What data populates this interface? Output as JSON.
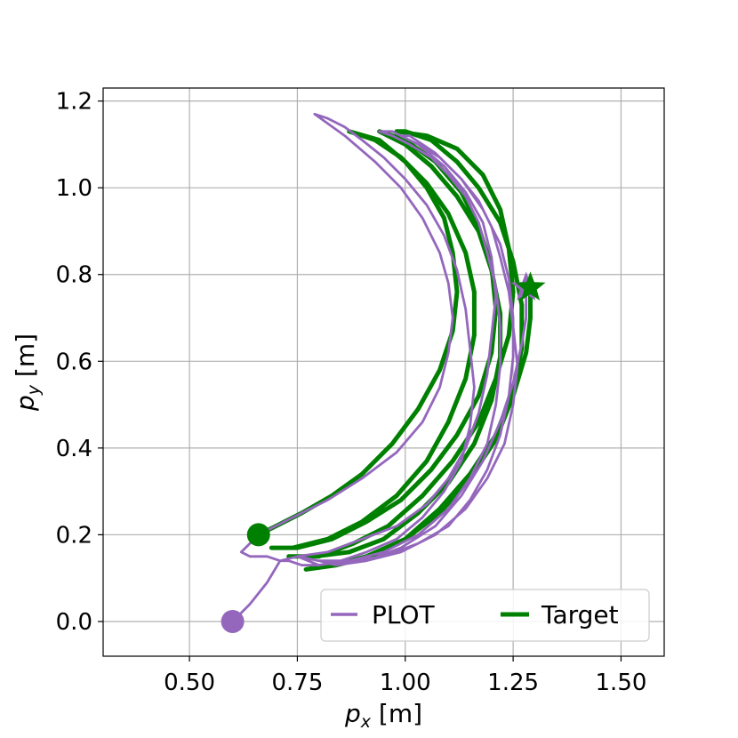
{
  "chart_data": {
    "type": "line",
    "xlabel": "p_x [m]",
    "ylabel": "p_y [m]",
    "xlabel_main": "p",
    "xlabel_sub": "x",
    "xlabel_unit": " [m]",
    "ylabel_main": "p",
    "ylabel_sub": "y",
    "ylabel_unit": " [m]",
    "xlim": [
      0.3,
      1.6
    ],
    "ylim": [
      -0.08,
      1.23
    ],
    "xticks": [
      0.5,
      0.75,
      1.0,
      1.25,
      1.5
    ],
    "xtick_labels": [
      "0.50",
      "0.75",
      "1.00",
      "1.25",
      "1.50"
    ],
    "yticks": [
      0.0,
      0.2,
      0.4,
      0.6,
      0.8,
      1.0,
      1.2
    ],
    "ytick_labels": [
      "0.0",
      "0.2",
      "0.4",
      "0.6",
      "0.8",
      "1.0",
      "1.2"
    ],
    "grid": true,
    "legend_position": "lower-right",
    "series": [
      {
        "name": "PLOT",
        "color": "#9467bd",
        "start": [
          0.6,
          0.0
        ],
        "end": [
          1.28,
          0.77
        ],
        "x": [
          0.6,
          0.64,
          0.68,
          0.71,
          0.68,
          0.64,
          0.62,
          0.64,
          0.68,
          0.74,
          0.82,
          0.9,
          0.98,
          1.04,
          1.08,
          1.1,
          1.11,
          1.1,
          1.08,
          1.04,
          0.99,
          0.93,
          0.86,
          0.79,
          0.82,
          0.86,
          0.9,
          0.95,
          1.0,
          1.05,
          1.09,
          1.12,
          1.14,
          1.15,
          1.16,
          1.15,
          1.13,
          1.09,
          1.04,
          0.98,
          0.91,
          0.85,
          0.8,
          0.76,
          0.73,
          0.71,
          0.75,
          0.82,
          0.9,
          0.98,
          1.05,
          1.1,
          1.14,
          1.17,
          1.19,
          1.2,
          1.21,
          1.2,
          1.18,
          1.14,
          1.09,
          1.03,
          0.97,
          0.94,
          0.97,
          1.01,
          1.06,
          1.1,
          1.14,
          1.17,
          1.19,
          1.21,
          1.22,
          1.22,
          1.21,
          1.19,
          1.15,
          1.1,
          1.03,
          0.95,
          0.87,
          0.8,
          0.75,
          0.8,
          0.87,
          0.95,
          1.03,
          1.1,
          1.15,
          1.19,
          1.22,
          1.24,
          1.25,
          1.25,
          1.24,
          1.22,
          1.18,
          1.13,
          1.07,
          1.01,
          0.99,
          1.03,
          1.08,
          1.13,
          1.17,
          1.2,
          1.22,
          1.24,
          1.25,
          1.26,
          1.25,
          1.23,
          1.19,
          1.14,
          1.07,
          0.99,
          0.91,
          0.84,
          0.8,
          0.84,
          0.91,
          0.99,
          1.07,
          1.13,
          1.18,
          1.22,
          1.25,
          1.27,
          1.28,
          1.28,
          1.28
        ],
        "y": [
          0.0,
          0.04,
          0.09,
          0.14,
          0.15,
          0.15,
          0.16,
          0.18,
          0.21,
          0.24,
          0.28,
          0.33,
          0.39,
          0.46,
          0.54,
          0.62,
          0.7,
          0.78,
          0.85,
          0.93,
          1.0,
          1.06,
          1.12,
          1.17,
          1.16,
          1.14,
          1.11,
          1.07,
          1.02,
          0.96,
          0.89,
          0.81,
          0.72,
          0.63,
          0.54,
          0.45,
          0.37,
          0.3,
          0.24,
          0.19,
          0.16,
          0.14,
          0.13,
          0.13,
          0.14,
          0.14,
          0.15,
          0.16,
          0.19,
          0.22,
          0.27,
          0.33,
          0.4,
          0.48,
          0.57,
          0.66,
          0.75,
          0.84,
          0.92,
          0.99,
          1.05,
          1.1,
          1.13,
          1.13,
          1.12,
          1.1,
          1.07,
          1.03,
          0.98,
          0.92,
          0.85,
          0.77,
          0.68,
          0.59,
          0.5,
          0.41,
          0.33,
          0.26,
          0.2,
          0.16,
          0.14,
          0.13,
          0.15,
          0.14,
          0.14,
          0.15,
          0.18,
          0.22,
          0.28,
          0.35,
          0.43,
          0.52,
          0.61,
          0.7,
          0.79,
          0.87,
          0.95,
          1.02,
          1.08,
          1.12,
          1.12,
          1.1,
          1.07,
          1.02,
          0.97,
          0.91,
          0.84,
          0.76,
          0.68,
          0.59,
          0.5,
          0.41,
          0.33,
          0.26,
          0.2,
          0.16,
          0.14,
          0.13,
          0.14,
          0.13,
          0.14,
          0.17,
          0.22,
          0.29,
          0.37,
          0.46,
          0.55,
          0.64,
          0.7,
          0.74,
          0.77
        ]
      },
      {
        "name": "Target",
        "color": "#008000",
        "start": [
          0.66,
          0.2
        ],
        "end": [
          1.29,
          0.77
        ],
        "x": [
          0.66,
          0.7,
          0.76,
          0.83,
          0.9,
          0.97,
          1.03,
          1.08,
          1.11,
          1.12,
          1.11,
          1.09,
          1.05,
          1.0,
          0.94,
          0.87,
          0.87,
          0.93,
          0.99,
          1.05,
          1.1,
          1.14,
          1.16,
          1.16,
          1.14,
          1.1,
          1.05,
          0.98,
          0.9,
          0.82,
          0.74,
          0.69,
          0.75,
          0.83,
          0.91,
          0.99,
          1.06,
          1.12,
          1.17,
          1.2,
          1.21,
          1.2,
          1.17,
          1.13,
          1.07,
          1.0,
          0.94,
          0.94,
          1.0,
          1.06,
          1.12,
          1.17,
          1.2,
          1.22,
          1.22,
          1.2,
          1.16,
          1.1,
          1.03,
          0.95,
          0.87,
          0.79,
          0.73,
          0.8,
          0.88,
          0.96,
          1.04,
          1.11,
          1.17,
          1.21,
          1.24,
          1.25,
          1.24,
          1.22,
          1.18,
          1.12,
          1.05,
          0.98,
          1.0,
          1.06,
          1.12,
          1.17,
          1.22,
          1.25,
          1.27,
          1.27,
          1.25,
          1.21,
          1.15,
          1.08,
          1.0,
          0.91,
          0.83,
          0.77,
          0.84,
          0.92,
          1.0,
          1.08,
          1.15,
          1.21,
          1.25,
          1.28,
          1.29,
          1.29
        ],
        "y": [
          0.2,
          0.22,
          0.25,
          0.29,
          0.34,
          0.41,
          0.49,
          0.58,
          0.67,
          0.76,
          0.85,
          0.93,
          1.0,
          1.06,
          1.11,
          1.13,
          1.13,
          1.11,
          1.07,
          1.01,
          0.94,
          0.85,
          0.76,
          0.66,
          0.56,
          0.46,
          0.37,
          0.29,
          0.23,
          0.19,
          0.17,
          0.17,
          0.17,
          0.19,
          0.23,
          0.28,
          0.35,
          0.43,
          0.52,
          0.62,
          0.72,
          0.82,
          0.91,
          0.99,
          1.06,
          1.11,
          1.13,
          1.13,
          1.1,
          1.05,
          0.98,
          0.9,
          0.81,
          0.71,
          0.61,
          0.51,
          0.41,
          0.32,
          0.25,
          0.19,
          0.16,
          0.15,
          0.15,
          0.15,
          0.18,
          0.22,
          0.29,
          0.37,
          0.46,
          0.56,
          0.66,
          0.76,
          0.86,
          0.95,
          1.03,
          1.09,
          1.12,
          1.13,
          1.13,
          1.11,
          1.06,
          1.0,
          0.92,
          0.83,
          0.73,
          0.63,
          0.53,
          0.43,
          0.34,
          0.26,
          0.19,
          0.15,
          0.13,
          0.12,
          0.13,
          0.15,
          0.19,
          0.25,
          0.33,
          0.42,
          0.52,
          0.62,
          0.7,
          0.77
        ]
      }
    ]
  }
}
